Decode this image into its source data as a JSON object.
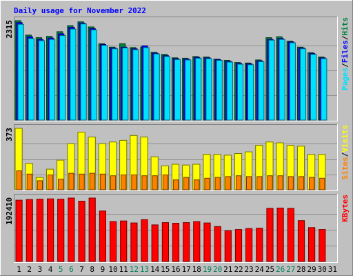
{
  "chart_data": {
    "type": "bar",
    "title": "Daily usage for November 2022",
    "days": [
      "1",
      "2",
      "3",
      "4",
      "5",
      "6",
      "7",
      "8",
      "9",
      "10",
      "11",
      "12",
      "13",
      "14",
      "15",
      "16",
      "17",
      "18",
      "19",
      "20",
      "21",
      "22",
      "23",
      "24",
      "25",
      "26",
      "27",
      "28",
      "29",
      "30",
      "31"
    ],
    "weekend_days": [
      "5",
      "6",
      "12",
      "13",
      "19",
      "20",
      "26",
      "27"
    ],
    "data_days": 30,
    "panels": [
      {
        "name": "hits-files-pages",
        "max_label": "2315",
        "ymax": 2315,
        "legend": [
          {
            "text": "Pages",
            "color": "#00e0ff"
          },
          {
            "text": "/",
            "color": "#000000"
          },
          {
            "text": "Files",
            "color": "#0000ff"
          },
          {
            "text": "/",
            "color": "#000000"
          },
          {
            "text": "Hits",
            "color": "#008040"
          }
        ],
        "series": [
          {
            "name": "Hits",
            "color": "#008040",
            "values": [
              2315,
              1980,
              1920,
              1950,
              2060,
              2200,
              2290,
              2170,
              1780,
              1700,
              1780,
              1690,
              1700,
              1580,
              1530,
              1450,
              1440,
              1480,
              1470,
              1420,
              1390,
              1340,
              1330,
              1400,
              1920,
              1940,
              1840,
              1700,
              1570,
              1470
            ]
          },
          {
            "name": "Files",
            "color": "#0000ff",
            "values": [
              2270,
              1940,
              1880,
              1910,
              2010,
              2160,
              2260,
              2130,
              1760,
              1680,
              1700,
              1660,
              1730,
              1560,
              1500,
              1430,
              1420,
              1460,
              1450,
              1410,
              1370,
              1320,
              1310,
              1380,
              1880,
              1900,
              1820,
              1680,
              1550,
              1450
            ]
          },
          {
            "name": "Pages",
            "color": "#00e0ff",
            "values": [
              2230,
              1900,
              1850,
              1880,
              1970,
              2120,
              2240,
              2100,
              1740,
              1660,
              1680,
              1640,
              1690,
              1540,
              1480,
              1410,
              1400,
              1440,
              1430,
              1390,
              1350,
              1300,
              1290,
              1360,
              1860,
              1880,
              1800,
              1660,
              1530,
              1430
            ]
          }
        ]
      },
      {
        "name": "visits-sites",
        "max_label": "373",
        "ymax": 373,
        "legend": [
          {
            "text": "Sites",
            "color": "#ff8000"
          },
          {
            "text": "/",
            "color": "#000000"
          },
          {
            "text": "Visits",
            "color": "#ffff00"
          }
        ],
        "series": [
          {
            "name": "Visits",
            "color": "#ffff00",
            "values": [
              373,
              160,
              75,
              125,
              180,
              280,
              350,
              320,
              280,
              290,
              300,
              330,
              320,
              200,
              145,
              155,
              150,
              155,
              215,
              215,
              210,
              220,
              230,
              270,
              290,
              285,
              270,
              265,
              215,
              215
            ]
          },
          {
            "name": "Sites",
            "color": "#ff8000",
            "values": [
              115,
              95,
              55,
              90,
              65,
              100,
              95,
              100,
              95,
              85,
              90,
              90,
              85,
              85,
              90,
              60,
              75,
              60,
              70,
              75,
              80,
              85,
              80,
              80,
              85,
              85,
              80,
              80,
              75,
              70
            ]
          }
        ]
      },
      {
        "name": "kbytes",
        "max_label": "192410",
        "ymax": 192410,
        "legend": [
          {
            "text": "KBytes",
            "color": "#ff0000"
          }
        ],
        "series": [
          {
            "name": "KBytes",
            "color": "#ff0000",
            "values": [
              186000,
              188000,
              189000,
              190000,
              189000,
              192410,
              183000,
              192410,
              153000,
              121000,
              123000,
              117000,
              127000,
              111000,
              118000,
              116000,
              118000,
              121000,
              117000,
              106000,
              93000,
              97000,
              100000,
              101000,
              161000,
              162000,
              161000,
              124000,
              103000,
              97000
            ]
          }
        ]
      }
    ]
  }
}
